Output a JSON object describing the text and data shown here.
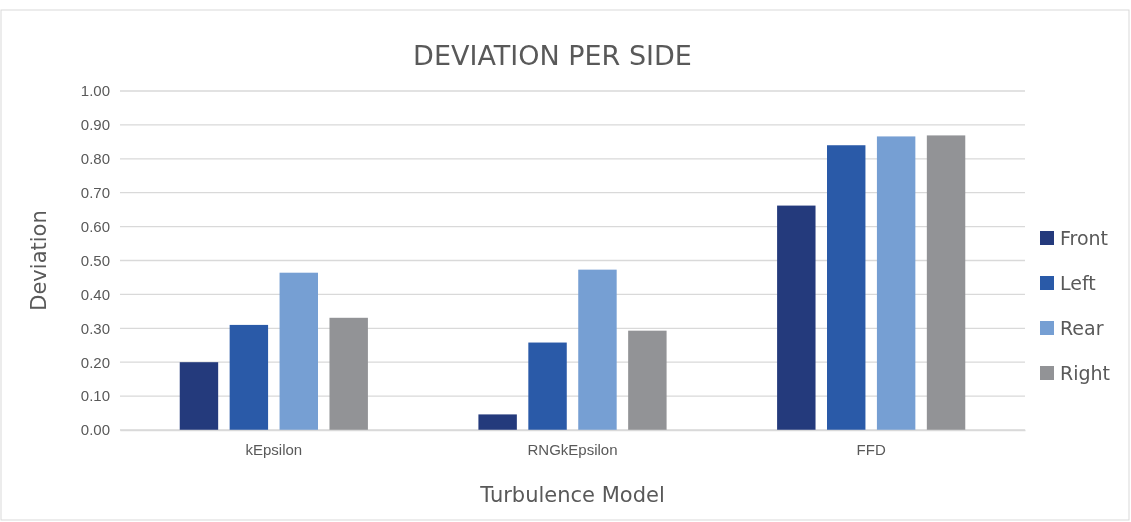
{
  "chart_data": {
    "type": "bar",
    "title": "DEVIATION PER SIDE",
    "xlabel": "Turbulence Model",
    "ylabel": "Deviation",
    "categories": [
      "kEpsilon",
      "RNGkEpsilon",
      "FFD"
    ],
    "series": [
      {
        "name": "Front",
        "color": "#243a7c",
        "values": [
          0.2,
          0.046,
          0.662
        ]
      },
      {
        "name": "Left",
        "color": "#2a5aa8",
        "values": [
          0.31,
          0.258,
          0.84
        ]
      },
      {
        "name": "Rear",
        "color": "#769fd3",
        "values": [
          0.464,
          0.473,
          0.866
        ]
      },
      {
        "name": "Right",
        "color": "#929396",
        "values": [
          0.331,
          0.293,
          0.869
        ]
      }
    ],
    "ylim": [
      0,
      1
    ],
    "yticks": [
      {
        "value": 0,
        "label": "0.00"
      },
      {
        "value": 0.1,
        "label": "0.10"
      },
      {
        "value": 0.2,
        "label": "0.20"
      },
      {
        "value": 0.3,
        "label": "0.30"
      },
      {
        "value": 0.4,
        "label": "0.40"
      },
      {
        "value": 0.5,
        "label": "0.50"
      },
      {
        "value": 0.6,
        "label": "0.60"
      },
      {
        "value": 0.7,
        "label": "0.70"
      },
      {
        "value": 0.8,
        "label": "0.80"
      },
      {
        "value": 0.9,
        "label": "0.90"
      },
      {
        "value": 1,
        "label": "1.00"
      }
    ],
    "grid": "y",
    "legend": "right"
  }
}
